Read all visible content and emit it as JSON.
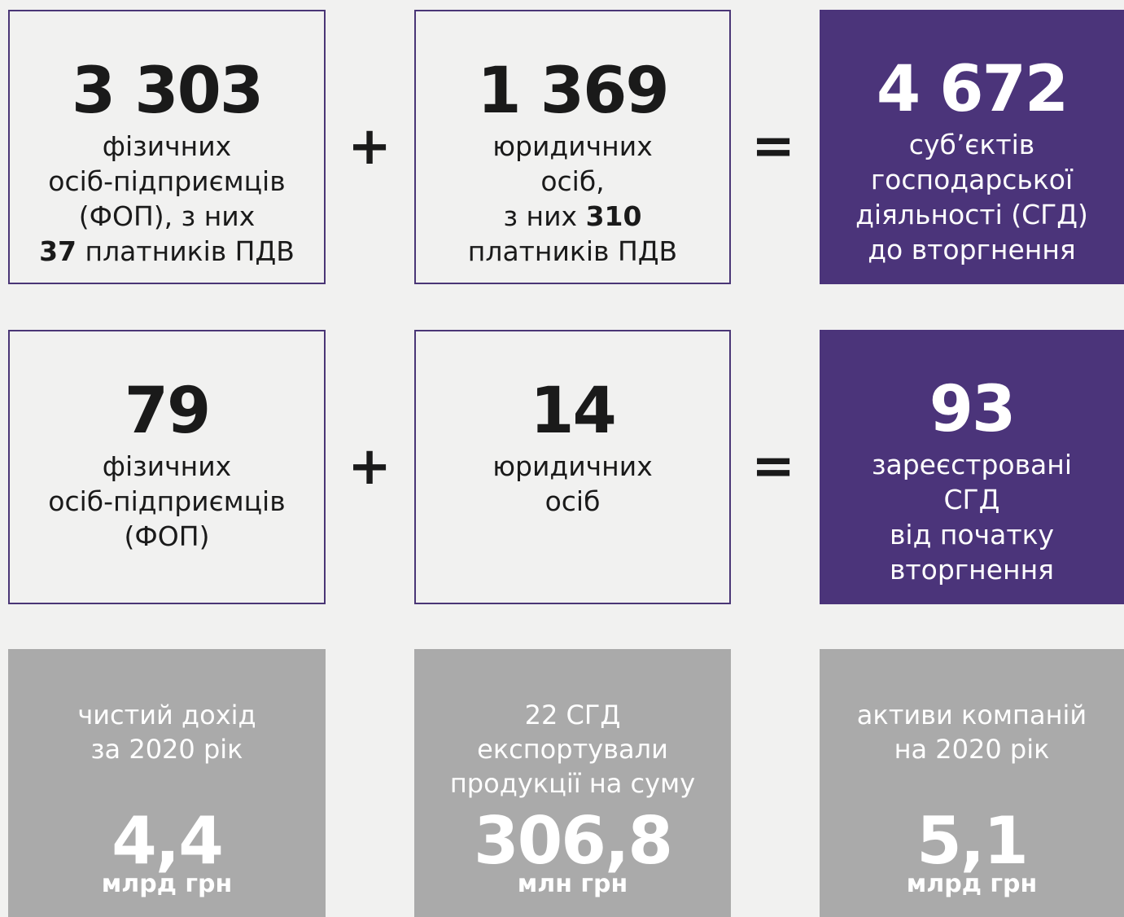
{
  "equations": [
    {
      "plus": "+",
      "equals": "=",
      "boxes": [
        {
          "number": "3 303",
          "lines": [
            [
              {
                "text": "фізичних"
              }
            ],
            [
              {
                "text": "осіб-підприємців"
              }
            ],
            [
              {
                "text": "(ФОП), з них"
              }
            ],
            [
              {
                "text": "37",
                "bold": true
              },
              {
                "text": "платників ПДВ"
              }
            ]
          ]
        },
        {
          "number": "1 369",
          "lines": [
            [
              {
                "text": "юридичних"
              }
            ],
            [
              {
                "text": "осіб,"
              }
            ],
            [
              {
                "text": "з них"
              },
              {
                "text": "310",
                "bold": true
              }
            ],
            [
              {
                "text": "платників ПДВ"
              }
            ]
          ]
        },
        {
          "number": "4 672",
          "lines": [
            [
              {
                "text": "суб’єктів"
              }
            ],
            [
              {
                "text": "господарської"
              }
            ],
            [
              {
                "text": "діяльності (СГД)"
              }
            ],
            [
              {
                "text": "до вторгнення"
              }
            ]
          ]
        }
      ]
    },
    {
      "plus": "+",
      "equals": "=",
      "boxes": [
        {
          "number": "79",
          "lines": [
            [
              {
                "text": "фізичних"
              }
            ],
            [
              {
                "text": "осіб-підприємців"
              }
            ],
            [
              {
                "text": "(ФОП)"
              }
            ]
          ]
        },
        {
          "number": "14",
          "lines": [
            [
              {
                "text": "юридичних"
              }
            ],
            [
              {
                "text": "осіб"
              }
            ]
          ]
        },
        {
          "number": "93",
          "lines": [
            [
              {
                "text": "зареєстровані"
              }
            ],
            [
              {
                "text": "СГД"
              }
            ],
            [
              {
                "text": "від початку"
              }
            ],
            [
              {
                "text": "вторгнення"
              }
            ]
          ]
        }
      ]
    }
  ],
  "facts": [
    {
      "caption": [
        "чистий дохід",
        "за 2020 рік"
      ],
      "value": "4,4",
      "unit": "млрд грн"
    },
    {
      "caption": [
        "22 СГД",
        "експортували",
        "продукції на суму"
      ],
      "value": "306,8",
      "unit": "млн грн"
    },
    {
      "caption": [
        "активи компаній",
        "на 2020 рік"
      ],
      "value": "5,1",
      "unit": "млрд грн"
    }
  ]
}
